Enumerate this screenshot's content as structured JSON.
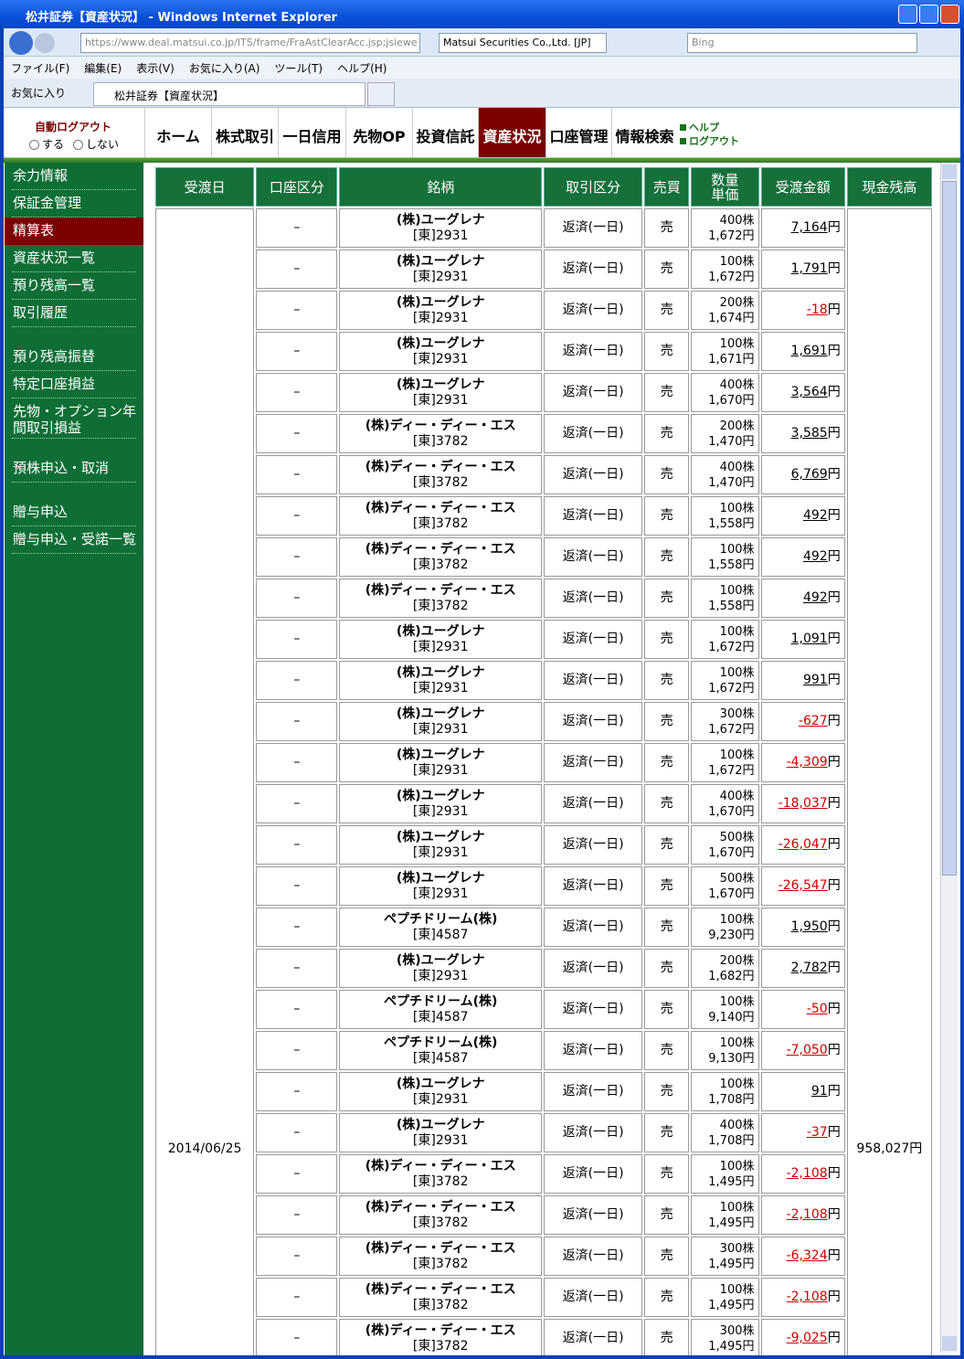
{
  "window": {
    "title": "松井証券【資産状況】 - Windows Internet Explorer",
    "address_url": "https://www.deal.matsui.co.jp/ITS/frame/FraAstClearAcc.jsp;jsiewe",
    "security_label": "Matsui Securities Co.,Ltd. [JP]",
    "search_placeholder": "Bing",
    "menu": [
      "ファイル(F)",
      "編集(E)",
      "表示(V)",
      "お気に入り(A)",
      "ツール(T)",
      "ヘルプ(H)"
    ],
    "favorites_label": "お気に入り",
    "tab_title": "松井証券【資産状況】"
  },
  "site": {
    "auto_logout_label": "自動ログアウト",
    "logout_options": [
      "する",
      "しない"
    ],
    "nav": {
      "items": [
        "ホーム",
        "株式取引",
        "一日信用",
        "先物OP",
        "投資信託",
        "資産状況",
        "口座管理",
        "情報検索"
      ],
      "active": 5
    },
    "help_links": [
      "ヘルプ",
      "ログアウト"
    ]
  },
  "sidebar": {
    "groups": [
      [
        "余力情報",
        "保証金管理",
        "精算表",
        "資産状況一覧",
        "預り残高一覧",
        "取引履歴"
      ],
      [
        "預り残高振替",
        "特定口座損益",
        "先物・オプション年間取引損益"
      ],
      [
        "預株申込・取消"
      ],
      [
        "贈与申込",
        "贈与申込・受諾一覧"
      ]
    ],
    "active": [
      0,
      2
    ]
  },
  "table": {
    "columns": [
      "受渡日",
      "口座区分",
      "銘柄",
      "取引区分",
      "売買",
      "数量\n単価",
      "受渡金額",
      "現金残高"
    ],
    "settlement_date": "2014/06/25",
    "cash_balance": "958,027円",
    "currency_unit": "円",
    "rows": [
      [
        "–",
        "(株)ユーグレナ",
        "[東]2931",
        "返済(一日)",
        "売",
        "400株",
        "1,672円",
        "7,164"
      ],
      [
        "–",
        "(株)ユーグレナ",
        "[東]2931",
        "返済(一日)",
        "売",
        "100株",
        "1,672円",
        "1,791"
      ],
      [
        "–",
        "(株)ユーグレナ",
        "[東]2931",
        "返済(一日)",
        "売",
        "200株",
        "1,674円",
        "-18"
      ],
      [
        "–",
        "(株)ユーグレナ",
        "[東]2931",
        "返済(一日)",
        "売",
        "100株",
        "1,671円",
        "1,691"
      ],
      [
        "–",
        "(株)ユーグレナ",
        "[東]2931",
        "返済(一日)",
        "売",
        "400株",
        "1,670円",
        "3,564"
      ],
      [
        "–",
        "(株)ディー・ディー・エス",
        "[東]3782",
        "返済(一日)",
        "売",
        "200株",
        "1,470円",
        "3,585"
      ],
      [
        "–",
        "(株)ディー・ディー・エス",
        "[東]3782",
        "返済(一日)",
        "売",
        "400株",
        "1,470円",
        "6,769"
      ],
      [
        "–",
        "(株)ディー・ディー・エス",
        "[東]3782",
        "返済(一日)",
        "売",
        "100株",
        "1,558円",
        "492"
      ],
      [
        "–",
        "(株)ディー・ディー・エス",
        "[東]3782",
        "返済(一日)",
        "売",
        "100株",
        "1,558円",
        "492"
      ],
      [
        "–",
        "(株)ディー・ディー・エス",
        "[東]3782",
        "返済(一日)",
        "売",
        "100株",
        "1,558円",
        "492"
      ],
      [
        "–",
        "(株)ユーグレナ",
        "[東]2931",
        "返済(一日)",
        "売",
        "100株",
        "1,672円",
        "1,091"
      ],
      [
        "–",
        "(株)ユーグレナ",
        "[東]2931",
        "返済(一日)",
        "売",
        "100株",
        "1,672円",
        "991"
      ],
      [
        "–",
        "(株)ユーグレナ",
        "[東]2931",
        "返済(一日)",
        "売",
        "300株",
        "1,672円",
        "-627"
      ],
      [
        "–",
        "(株)ユーグレナ",
        "[東]2931",
        "返済(一日)",
        "売",
        "100株",
        "1,672円",
        "-4,309"
      ],
      [
        "–",
        "(株)ユーグレナ",
        "[東]2931",
        "返済(一日)",
        "売",
        "400株",
        "1,670円",
        "-18,037"
      ],
      [
        "–",
        "(株)ユーグレナ",
        "[東]2931",
        "返済(一日)",
        "売",
        "500株",
        "1,670円",
        "-26,047"
      ],
      [
        "–",
        "(株)ユーグレナ",
        "[東]2931",
        "返済(一日)",
        "売",
        "500株",
        "1,670円",
        "-26,547"
      ],
      [
        "–",
        "ペプチドリーム(株)",
        "[東]4587",
        "返済(一日)",
        "売",
        "100株",
        "9,230円",
        "1,950"
      ],
      [
        "–",
        "(株)ユーグレナ",
        "[東]2931",
        "返済(一日)",
        "売",
        "200株",
        "1,682円",
        "2,782"
      ],
      [
        "–",
        "ペプチドリーム(株)",
        "[東]4587",
        "返済(一日)",
        "売",
        "100株",
        "9,140円",
        "-50"
      ],
      [
        "–",
        "ペプチドリーム(株)",
        "[東]4587",
        "返済(一日)",
        "売",
        "100株",
        "9,130円",
        "-7,050"
      ],
      [
        "–",
        "(株)ユーグレナ",
        "[東]2931",
        "返済(一日)",
        "売",
        "100株",
        "1,708円",
        "91"
      ],
      [
        "–",
        "(株)ユーグレナ",
        "[東]2931",
        "返済(一日)",
        "売",
        "400株",
        "1,708円",
        "-37"
      ],
      [
        "–",
        "(株)ディー・ディー・エス",
        "[東]3782",
        "返済(一日)",
        "売",
        "100株",
        "1,495円",
        "-2,108"
      ],
      [
        "–",
        "(株)ディー・ディー・エス",
        "[東]3782",
        "返済(一日)",
        "売",
        "100株",
        "1,495円",
        "-2,108"
      ],
      [
        "–",
        "(株)ディー・ディー・エス",
        "[東]3782",
        "返済(一日)",
        "売",
        "300株",
        "1,495円",
        "-6,324"
      ],
      [
        "–",
        "(株)ディー・ディー・エス",
        "[東]3782",
        "返済(一日)",
        "売",
        "100株",
        "1,495円",
        "-2,108"
      ],
      [
        "–",
        "(株)ディー・ディー・エス",
        "[東]3782",
        "返済(一日)",
        "売",
        "300株",
        "1,495円",
        "-9,025"
      ]
    ]
  }
}
